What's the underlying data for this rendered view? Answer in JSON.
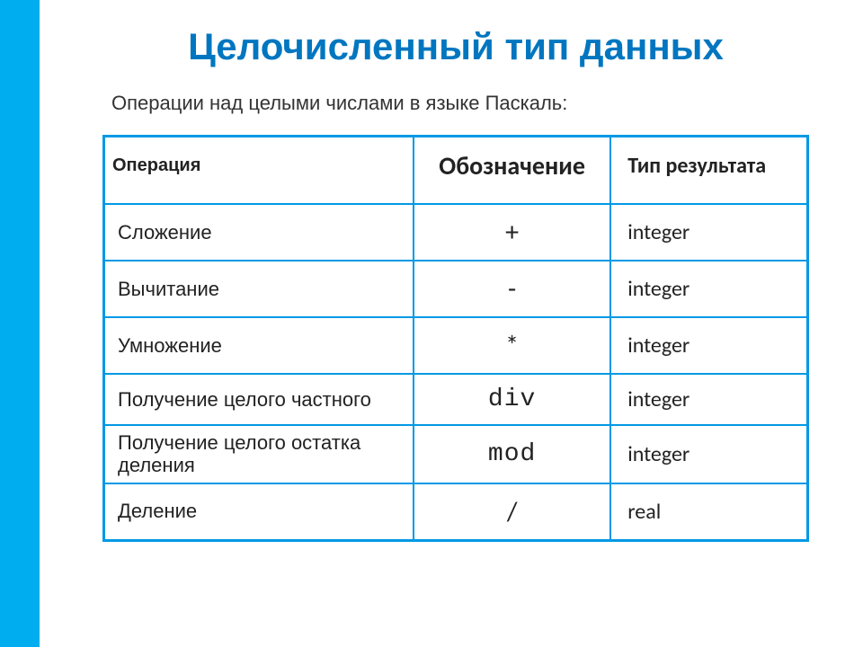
{
  "title": "Целочисленный тип данных",
  "subtitle": "Операции над целыми числами в языке Паскаль:",
  "colors": {
    "accent_stripe": "#00aeef",
    "table_border": "#0099e5",
    "title_color": "#0076c0",
    "text_color": "#222222",
    "background": "#ffffff"
  },
  "table": {
    "headers": {
      "operation": "Операция",
      "symbol": "Обозначение",
      "result": "Тип результата"
    },
    "rows": [
      {
        "operation": "Сложение",
        "symbol": "+",
        "result": "integer",
        "sym_class": "sym-big"
      },
      {
        "operation": "Вычитание",
        "symbol": "-",
        "result": "integer",
        "sym_class": "sym-big"
      },
      {
        "operation": "Умножение",
        "symbol": "*",
        "result": "integer",
        "sym_class": "sym-big"
      },
      {
        "operation": "Получение целого частного",
        "symbol": "div",
        "result": "integer",
        "sym_class": "sym-code"
      },
      {
        "operation": "Получение целого остатка деления",
        "symbol": "mod",
        "result": "integer",
        "sym_class": "sym-code",
        "tight": true
      },
      {
        "operation": "Деление",
        "symbol": "/",
        "result": "real",
        "sym_class": "sym-big"
      }
    ]
  }
}
